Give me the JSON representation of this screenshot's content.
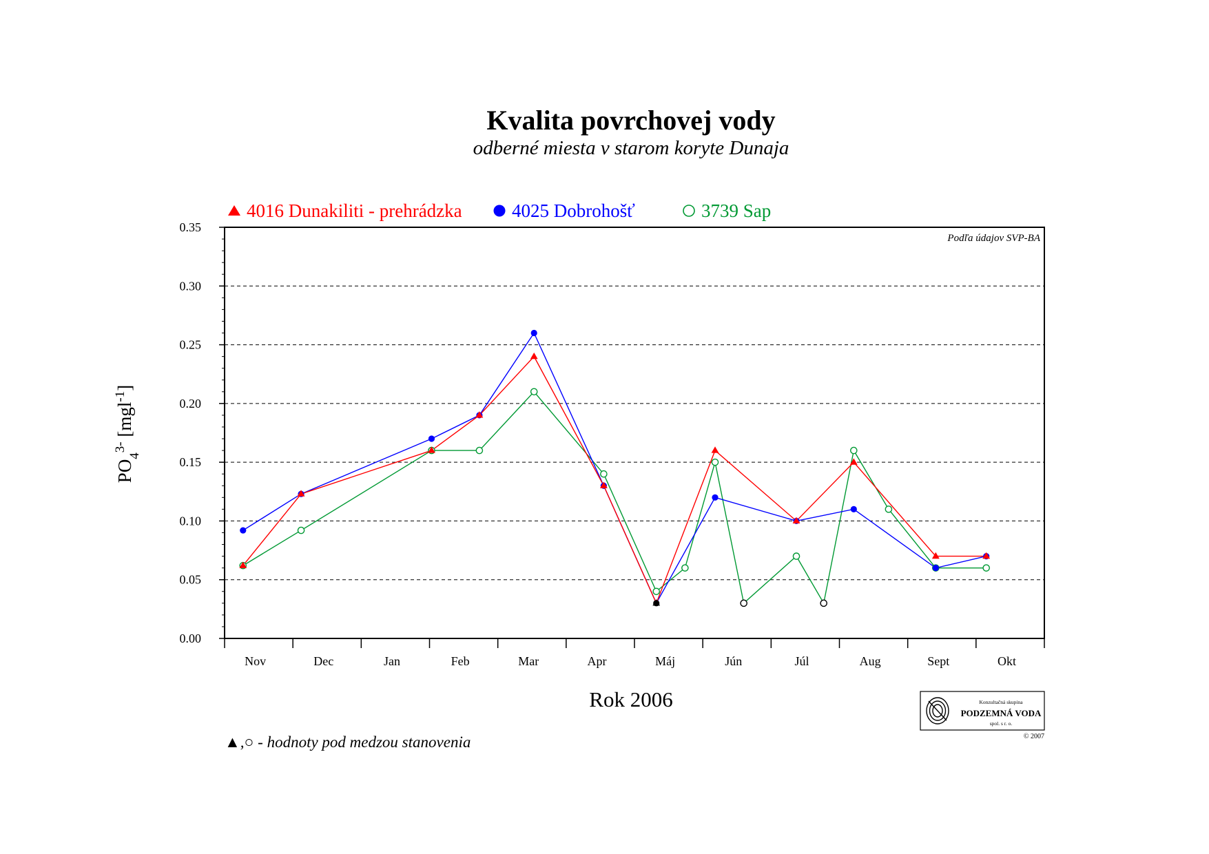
{
  "chart_data": {
    "type": "line",
    "title": "Kvalita povrchovej vody",
    "subtitle": "odberné miesta v starom koryte Dunaja",
    "xlabel": "Rok 2006",
    "ylabel_main": "PO",
    "ylabel_sub": "4",
    "ylabel_sup": "3-",
    "ylabel_unit_open": " [mgl",
    "ylabel_unit_sup": "-1",
    "ylabel_unit_close": "]",
    "source_note": "Podľa údajov SVP-BA",
    "footnote_symbols": "▲,○",
    "footnote_text": " - hodnoty pod medzou stanovenia",
    "logo_text": {
      "top": "Konzultačná skupina",
      "main": "PODZEMNÁ VODA",
      "bottom": "spol. s r. o.",
      "copyright": "© 2007"
    },
    "categories": [
      "Nov",
      "Dec",
      "Jan",
      "Feb",
      "Mar",
      "Apr",
      "Máj",
      "Jún",
      "Júl",
      "Aug",
      "Sept",
      "Okt"
    ],
    "x_range": [
      0,
      12
    ],
    "ylim": [
      0,
      0.35
    ],
    "yticks": [
      "0.00",
      "0.05",
      "0.10",
      "0.15",
      "0.20",
      "0.25",
      "0.30",
      "0.35"
    ],
    "grid": "horizontal dashed",
    "legend_position": "top-left",
    "series": [
      {
        "name": "4016 Dunakiliti - prehrádzka",
        "color": "#ff0000",
        "marker": "triangle",
        "points": [
          {
            "x": 0.27,
            "y": 0.062
          },
          {
            "x": 1.12,
            "y": 0.123
          },
          {
            "x": 3.03,
            "y": 0.16
          },
          {
            "x": 3.73,
            "y": 0.19
          },
          {
            "x": 4.53,
            "y": 0.24
          },
          {
            "x": 5.55,
            "y": 0.13
          },
          {
            "x": 6.32,
            "y": 0.03,
            "below_limit": true
          },
          {
            "x": 7.18,
            "y": 0.16
          },
          {
            "x": 8.37,
            "y": 0.1
          },
          {
            "x": 9.21,
            "y": 0.15
          },
          {
            "x": 10.41,
            "y": 0.07
          },
          {
            "x": 11.15,
            "y": 0.07
          }
        ]
      },
      {
        "name": "4025 Dobrohošť",
        "color": "#0000ff",
        "marker": "filled-circle",
        "points": [
          {
            "x": 0.27,
            "y": 0.092
          },
          {
            "x": 1.12,
            "y": 0.123
          },
          {
            "x": 3.03,
            "y": 0.17
          },
          {
            "x": 3.73,
            "y": 0.19
          },
          {
            "x": 4.53,
            "y": 0.26
          },
          {
            "x": 5.55,
            "y": 0.13
          },
          {
            "x": 6.32,
            "y": 0.03,
            "below_limit": true
          },
          {
            "x": 7.18,
            "y": 0.12
          },
          {
            "x": 8.37,
            "y": 0.1
          },
          {
            "x": 9.21,
            "y": 0.11
          },
          {
            "x": 10.41,
            "y": 0.06
          },
          {
            "x": 11.15,
            "y": 0.07
          }
        ]
      },
      {
        "name": "3739 Sap",
        "color": "#009933",
        "marker": "open-circle",
        "points": [
          {
            "x": 0.27,
            "y": 0.062
          },
          {
            "x": 1.12,
            "y": 0.092
          },
          {
            "x": 3.03,
            "y": 0.16
          },
          {
            "x": 3.73,
            "y": 0.16
          },
          {
            "x": 4.53,
            "y": 0.21
          },
          {
            "x": 5.55,
            "y": 0.14
          },
          {
            "x": 6.32,
            "y": 0.04
          },
          {
            "x": 6.74,
            "y": 0.06
          },
          {
            "x": 7.18,
            "y": 0.15
          },
          {
            "x": 7.6,
            "y": 0.03,
            "below_limit": true
          },
          {
            "x": 8.37,
            "y": 0.07
          },
          {
            "x": 8.77,
            "y": 0.03,
            "below_limit": true
          },
          {
            "x": 9.21,
            "y": 0.16
          },
          {
            "x": 9.72,
            "y": 0.11
          },
          {
            "x": 10.41,
            "y": 0.06
          },
          {
            "x": 11.15,
            "y": 0.06
          }
        ]
      }
    ]
  }
}
